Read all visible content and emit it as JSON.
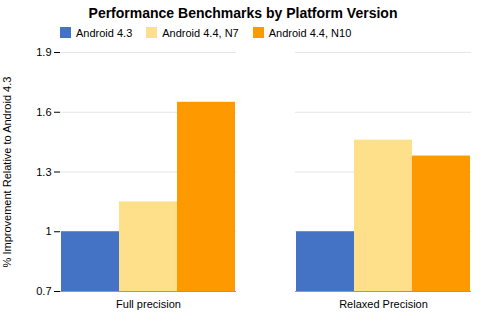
{
  "chart_data": {
    "type": "bar",
    "title": "Performance Benchmarks by Platform Version",
    "ylabel": "% Improvement Relative to Android 4.3",
    "categories": [
      "Full precision",
      "Relaxed Precision"
    ],
    "series": [
      {
        "name": "Android 4.3",
        "color": "#4472C4",
        "values": [
          1.0,
          1.0
        ]
      },
      {
        "name": "Android 4.4, N7",
        "color": "#FFE08A",
        "values": [
          1.15,
          1.46
        ]
      },
      {
        "name": "Android 4.4, N10",
        "color": "#FF9900",
        "values": [
          1.65,
          1.38
        ]
      }
    ],
    "ylim": [
      0.7,
      1.9
    ],
    "yticks": [
      0.7,
      1,
      1.3,
      1.6,
      1.9
    ],
    "grid": true,
    "legend": "upper left"
  }
}
